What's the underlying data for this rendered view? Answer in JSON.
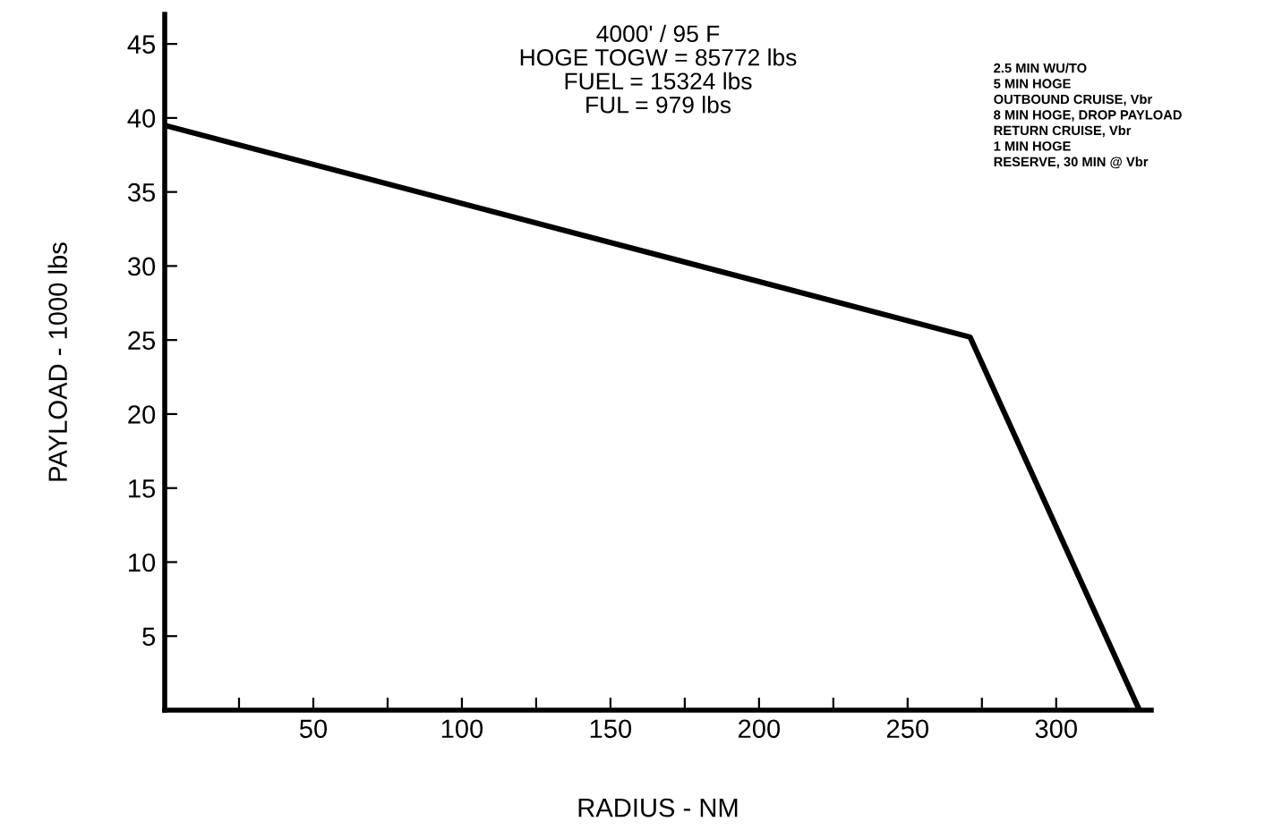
{
  "chart_data": {
    "type": "line",
    "xlabel": "RADIUS - NM",
    "ylabel": "PAYLOAD - 1000 lbs",
    "x": [
      0,
      271,
      328
    ],
    "series": [
      {
        "color": "#000000",
        "values": [
          39.5,
          25.2,
          0
        ]
      }
    ],
    "xlim": [
      0,
      332
    ],
    "ylim": [
      0,
      47
    ],
    "xticks": [
      {
        "value": 25,
        "label": null
      },
      50,
      {
        "value": 75,
        "label": null
      },
      100,
      {
        "value": 125,
        "label": null
      },
      150,
      {
        "value": 175,
        "label": null
      },
      200,
      {
        "value": 225,
        "label": null
      },
      250,
      {
        "value": 275,
        "label": null
      },
      300
    ],
    "yticks": [
      5,
      10,
      15,
      20,
      25,
      30,
      35,
      40,
      45
    ],
    "annotations": [
      "4000' / 95 F\nHOGE TOGW = 85772 lbs\nFUEL = 15324 lbs\nFUL = 979 lbs",
      "2.5 MIN WU/TO\n5 MIN HOGE\nOUTBOUND CRUISE, Vbr\n8 MIN HOGE, DROP PAYLOAD\nRETURN CRUISE, Vbr\n1 MIN HOGE\nRESERVE, 30 MIN @ Vbr"
    ],
    "grid": false,
    "legend": false,
    "marker": "none",
    "line_style": "solid"
  }
}
